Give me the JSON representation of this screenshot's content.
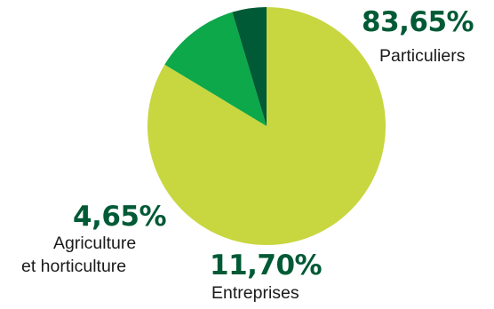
{
  "chart_data": {
    "type": "pie",
    "slices": [
      {
        "label": "Particuliers",
        "value": 83.65,
        "value_text": "83,65%",
        "color": "#c8d640"
      },
      {
        "label": "Entreprises",
        "value": 11.7,
        "value_text": "11,70%",
        "color": "#0ca84a"
      },
      {
        "label": "Agriculture et horticulture",
        "value": 4.65,
        "value_text": "4,65%",
        "color": "#005a35",
        "label_lines": [
          "Agriculture",
          "et horticulture"
        ]
      }
    ],
    "label_colors": {
      "value": "#005a35",
      "text": "#1a1a1a"
    }
  }
}
